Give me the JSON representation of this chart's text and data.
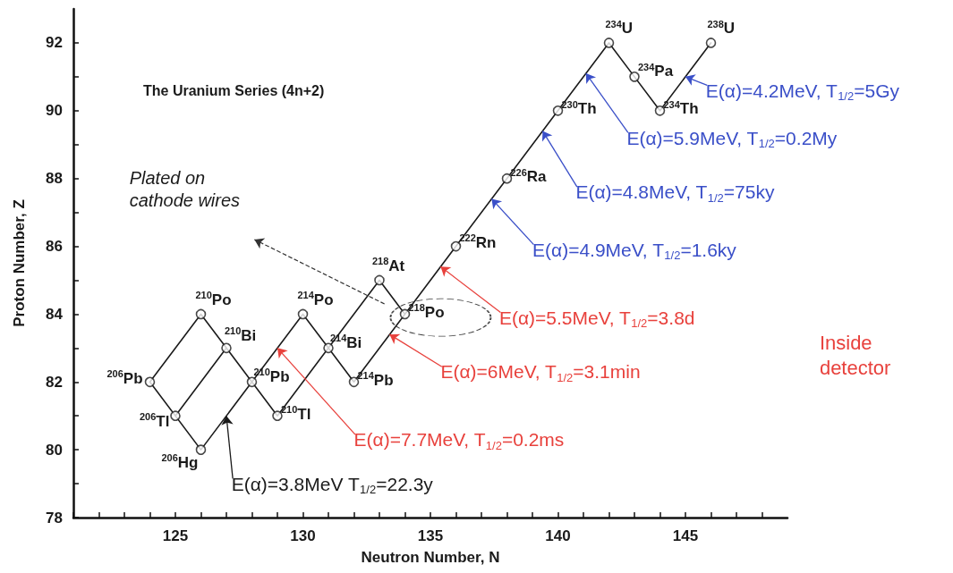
{
  "chart_data": {
    "type": "line",
    "title": "The Uranium Series (4n+2)",
    "xlabel": "Neutron Number, N",
    "ylabel": "Proton Number, Z",
    "xlim": [
      121,
      149
    ],
    "ylim": [
      78,
      93
    ],
    "xticks": [
      {
        "value": 121,
        "label": null
      },
      {
        "value": 122,
        "label": null
      },
      {
        "value": 123,
        "label": null
      },
      {
        "value": 124,
        "label": null
      },
      125,
      {
        "value": 126,
        "label": null
      },
      {
        "value": 127,
        "label": null
      },
      {
        "value": 128,
        "label": null
      },
      {
        "value": 129,
        "label": null
      },
      130,
      {
        "value": 131,
        "label": null
      },
      {
        "value": 132,
        "label": null
      },
      {
        "value": 133,
        "label": null
      },
      {
        "value": 134,
        "label": null
      },
      135,
      {
        "value": 136,
        "label": null
      },
      {
        "value": 137,
        "label": null
      },
      {
        "value": 138,
        "label": null
      },
      {
        "value": 139,
        "label": null
      },
      140,
      {
        "value": 141,
        "label": null
      },
      {
        "value": 142,
        "label": null
      },
      {
        "value": 143,
        "label": null
      },
      {
        "value": 144,
        "label": null
      },
      145,
      {
        "value": 146,
        "label": null
      },
      {
        "value": 147,
        "label": null
      },
      {
        "value": 148,
        "label": null
      }
    ],
    "yticks": [
      78,
      {
        "value": 79,
        "label": null
      },
      80,
      {
        "value": 81,
        "label": null
      },
      82,
      {
        "value": 83,
        "label": null
      },
      84,
      {
        "value": 85,
        "label": null
      },
      86,
      {
        "value": 87,
        "label": null
      },
      88,
      {
        "value": 89,
        "label": null
      },
      90,
      {
        "value": 91,
        "label": null
      },
      92
    ],
    "marker": "none",
    "line_style": "solid",
    "series": [
      {
        "color": "#1a1a1a",
        "x": [
          146,
          144,
          143,
          142,
          140,
          138,
          136,
          134,
          132,
          131,
          130,
          128,
          127,
          126,
          124
        ],
        "values": [
          92,
          90,
          91,
          92,
          90,
          88,
          86,
          84,
          82,
          83,
          84,
          82,
          83,
          84,
          82
        ]
      },
      {
        "color": "#1a1a1a",
        "x": [
          134,
          133,
          131
        ],
        "values": [
          84,
          85,
          83
        ]
      },
      {
        "color": "#1a1a1a",
        "x": [
          131,
          129,
          128
        ],
        "values": [
          83,
          81,
          82
        ]
      },
      {
        "color": "#1a1a1a",
        "x": [
          128,
          126,
          124
        ],
        "values": [
          82,
          80,
          82
        ]
      },
      {
        "color": "#1a1a1a",
        "x": [
          127,
          125
        ],
        "values": [
          83,
          81
        ]
      },
      {
        "type": "scatter",
        "color": "#1a1a1a",
        "marker": "circle",
        "x": [
          146,
          142,
          143,
          144,
          140,
          138,
          136,
          134,
          133,
          132,
          131,
          130,
          129,
          128,
          127,
          126,
          124,
          125,
          126
        ],
        "values": [
          92,
          92,
          91,
          90,
          90,
          88,
          86,
          84,
          85,
          82,
          83,
          84,
          81,
          82,
          83,
          84,
          82,
          81,
          80
        ]
      }
    ],
    "annotations": [
      {
        "text": "$^{238}$U",
        "x": 146,
        "y": 92
      },
      {
        "text": "$^{234}$U",
        "x": 142,
        "y": 92
      },
      {
        "text": "$^{234}$Pa",
        "x": 143,
        "y": 91
      },
      {
        "text": "$^{234}$Th",
        "x": 144,
        "y": 90
      },
      {
        "text": "$^{230}$Th",
        "x": 140,
        "y": 90
      },
      {
        "text": "$^{226}$Ra",
        "x": 138,
        "y": 88
      },
      {
        "text": "$^{222}$Rn",
        "x": 136,
        "y": 86
      },
      {
        "text": "$^{218}$Po",
        "x": 134,
        "y": 84
      },
      {
        "text": "$^{218}$At",
        "x": 133,
        "y": 85
      },
      {
        "text": "$^{214}$Pb",
        "x": 132,
        "y": 82
      },
      {
        "text": "$^{214}$Bi",
        "x": 131,
        "y": 83
      },
      {
        "text": "$^{214}$Po",
        "x": 130,
        "y": 84
      },
      {
        "text": "$^{210}$Tl",
        "x": 129,
        "y": 81
      },
      {
        "text": "$^{210}$Pb",
        "x": 128,
        "y": 82
      },
      {
        "text": "$^{210}$Bi",
        "x": 127,
        "y": 83
      },
      {
        "text": "$^{210}$Po",
        "x": 126,
        "y": 84
      },
      {
        "text": "$^{206}$Pb",
        "x": 124,
        "y": 82
      },
      {
        "text": "$^{206}$Tl",
        "x": 125,
        "y": 81
      },
      {
        "text": "$^{206}$Hg",
        "x": 126,
        "y": 80
      },
      {
        "text": "E(α)=4.2MeV, T$_{1/2}$=5Gy",
        "x": 145,
        "y": 91
      },
      {
        "text": "E(α)=5.9MeV, T$_{1/2}$=0.2My",
        "x": 141.1,
        "y": 91.1
      },
      {
        "text": "E(α)=4.8MeV, T$_{1/2}$=75ky",
        "x": 139.4,
        "y": 89.4
      },
      {
        "text": "E(α)=4.9MeV, T$_{1/2}$=1.6ky",
        "x": 137.4,
        "y": 87.4
      },
      {
        "text": "E(α)=5.5MeV, T$_{1/2}$=3.8d",
        "x": 135.4,
        "y": 85.4
      },
      {
        "text": "E(α)=6MeV, T$_{1/2}$=3.1min",
        "x": 133.4,
        "y": 83.4
      },
      {
        "text": "E(α)=7.7MeV, T$_{1/2}$=0.2ms",
        "x": 129,
        "y": 83
      },
      {
        "text": "E(α)=3.8MeV T$_{1/2}$=22.3y",
        "x": 127,
        "y": 81
      },
      "Plated on\ncathode wires",
      "Inside\ndetector"
    ]
  }
}
